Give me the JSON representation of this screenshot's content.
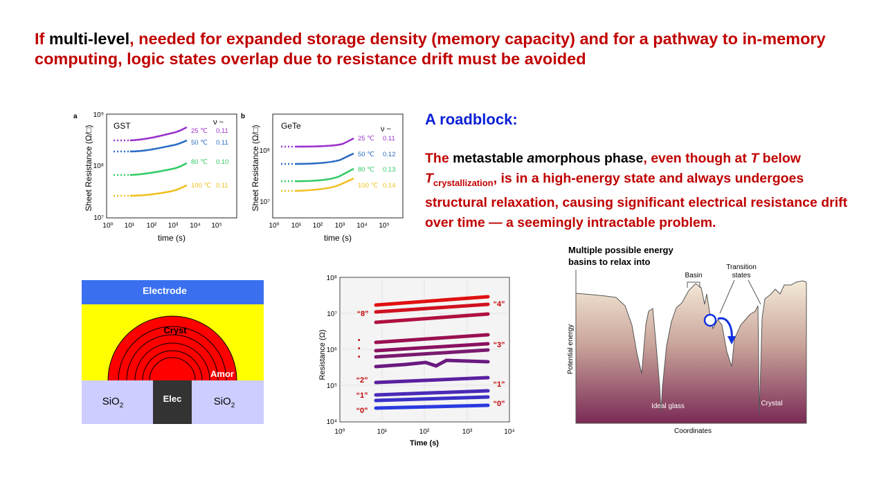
{
  "headline": {
    "part1": "If ",
    "part2": "multi-level",
    "part3": ", needed for expanded storage density (memory capacity) and for a pathway to in-memory computing, logic states overlap due to resistance drift must be avoided"
  },
  "roadblock": {
    "title": "A roadblock:",
    "t1": "The ",
    "t2": "metastable ",
    "t3": "a",
    "t4": "morphous phase",
    "t5": ", even though at ",
    "t6": "T",
    "t7": " below ",
    "t8": "T",
    "t9": "crystallization",
    "t10": ", is in a high-energy state and always undergoes structural relaxation, causing significant electrical resistance drift over time — a seemingly intractable problem."
  },
  "drift_panels": {
    "ylabel": "Sheet Resistance (Ω/□)",
    "xlabel": "time (s)",
    "nu_header": "ν ~",
    "panel_a": {
      "letter": "a",
      "material": "GST",
      "y_ticks": [
        "10⁷",
        "10⁸",
        "10⁹"
      ],
      "x_ticks": [
        "10⁰",
        "10¹",
        "10²",
        "10³",
        "10⁴",
        "10⁵"
      ],
      "series": [
        {
          "temp": "25 ℃",
          "nu": "0.11",
          "color": "#9933cc"
        },
        {
          "temp": "50 ℃",
          "nu": "0.11",
          "color": "#2b6cc4"
        },
        {
          "temp": "80 ℃",
          "nu": "0.10",
          "color": "#33cc66"
        },
        {
          "temp": "100 ℃",
          "nu": "0.11",
          "color": "#f0c020"
        }
      ]
    },
    "panel_b": {
      "letter": "b",
      "material": "GeTe",
      "y_ticks": [
        "10⁷",
        "10⁸"
      ],
      "x_ticks": [
        "10⁰",
        "10¹",
        "10²",
        "10³",
        "10⁴",
        "10⁵"
      ],
      "series": [
        {
          "temp": "25 ℃",
          "nu": "0.11",
          "color": "#9933cc"
        },
        {
          "temp": "50 ℃",
          "nu": "0.12",
          "color": "#2b6cc4"
        },
        {
          "temp": "80 ℃",
          "nu": "0.13",
          "color": "#33cc66"
        },
        {
          "temp": "100 ℃",
          "nu": "0.14",
          "color": "#f0c020"
        }
      ]
    }
  },
  "device": {
    "electrode": "Electrode",
    "cryst": "Cryst",
    "amor": "Amor",
    "elec": "Elec",
    "sio2_left": "SiO",
    "sio2_right": "SiO",
    "sub": "2"
  },
  "multilevel": {
    "ylabel": "Resistance (Ω)",
    "xlabel": "Time (s)",
    "y_ticks": [
      "10⁴",
      "10⁵",
      "10⁶",
      "10⁷",
      "10⁸"
    ],
    "x_ticks": [
      "10⁰",
      "10¹",
      "10²",
      "10³",
      "10⁴"
    ],
    "left_labels": [
      "“8”",
      "“2”",
      "“1”",
      "“0”"
    ],
    "right_labels": [
      "“4”",
      "“3”",
      "“1”",
      "“0”"
    ],
    "dots": "•\n•\n•"
  },
  "energy": {
    "title1": "Multiple possible energy",
    "title2": "basins to relax into",
    "basin": "Basin",
    "transition1": "Transition",
    "transition2": "states",
    "ideal_glass": "Ideal glass",
    "crystal": "Crystal",
    "ylabel": "Potential energy",
    "xlabel": "Coordinates"
  }
}
